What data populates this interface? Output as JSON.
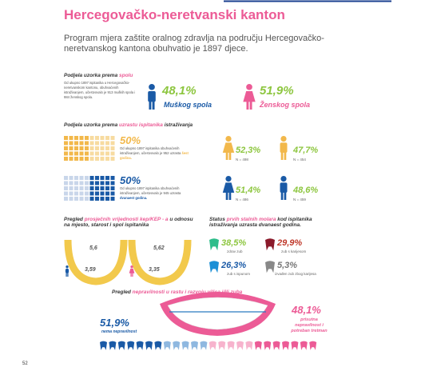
{
  "header": {
    "title": "Hercegovačko-neretvanski kanton",
    "intro": "Program mjera zaštite oralnog zdravlja na području Hercegovačko-neretvanskog kantona obuhvatio je 1897 djece."
  },
  "gender": {
    "heading": [
      "Podjela uzorka prema ",
      "spolu"
    ],
    "note": "Od ukupno 1897 ispitanika u Hercegovačko-neretvanskom kantonu, obuhvaćenih istraživanjem, učestvovalo je 913 muških spola i 984 ženskog spola.",
    "male": {
      "value": "48,1%",
      "label": "Muškog spola"
    },
    "female": {
      "value": "51,9%",
      "label": "Ženskog spola"
    }
  },
  "age": {
    "heading": [
      "Podjela uzorka prema ",
      "uzrastu ispitanika",
      " istraživanja"
    ],
    "rows": [
      {
        "value": "50%",
        "note": "Od ukupno 1897 ispitanika obuhvaćenih istraživanjem, učestvovalo je 952 uzrasta",
        "emph": "šest godina.",
        "girls": {
          "value": "52,3%",
          "n": "N = 498"
        },
        "boys": {
          "value": "47,7%",
          "n": "N = 454"
        }
      },
      {
        "value": "50%",
        "note": "Od ukupno 1897 ispitanika obuhvaćenih istraživanjem, učestvovalo je 945 uzrasta",
        "emph": "dvanaest godina.",
        "girls": {
          "value": "51,4%",
          "n": "N = 486"
        },
        "boys": {
          "value": "48,6%",
          "n": "N = 459"
        }
      }
    ]
  },
  "kep": {
    "heading": [
      "Pregled ",
      "prosječnih vrijednosti kep/KEP - a",
      " u odnosu na mjesto, starost i spol ispitanika"
    ],
    "values": [
      "5,6",
      "3,59",
      "5,62",
      "3,35"
    ]
  },
  "molars": {
    "heading": [
      "Status ",
      "prvih stalnih molara",
      " kod ispitanika istraživanja uzrasta dvanaest godina."
    ],
    "items": [
      {
        "value": "38,5%",
        "label": "zdrav zub"
      },
      {
        "value": "29,9%",
        "label": "zub s karijesom"
      },
      {
        "value": "26,3%",
        "label": "zub s ispunom"
      },
      {
        "value": "5,3%",
        "label": "izvađen zub zbog karijesa"
      }
    ]
  },
  "ortho": {
    "heading": [
      "Pregled ",
      "nepravilnosti u rastu i razvoju vilica i/ili zuba"
    ],
    "none": {
      "value": "51,9%",
      "label": "nema nepravilnost"
    },
    "present": {
      "value": "48,1%",
      "label": "prisutna nepravilnost i potreban tretman"
    }
  },
  "footer": {
    "page": "52"
  }
}
